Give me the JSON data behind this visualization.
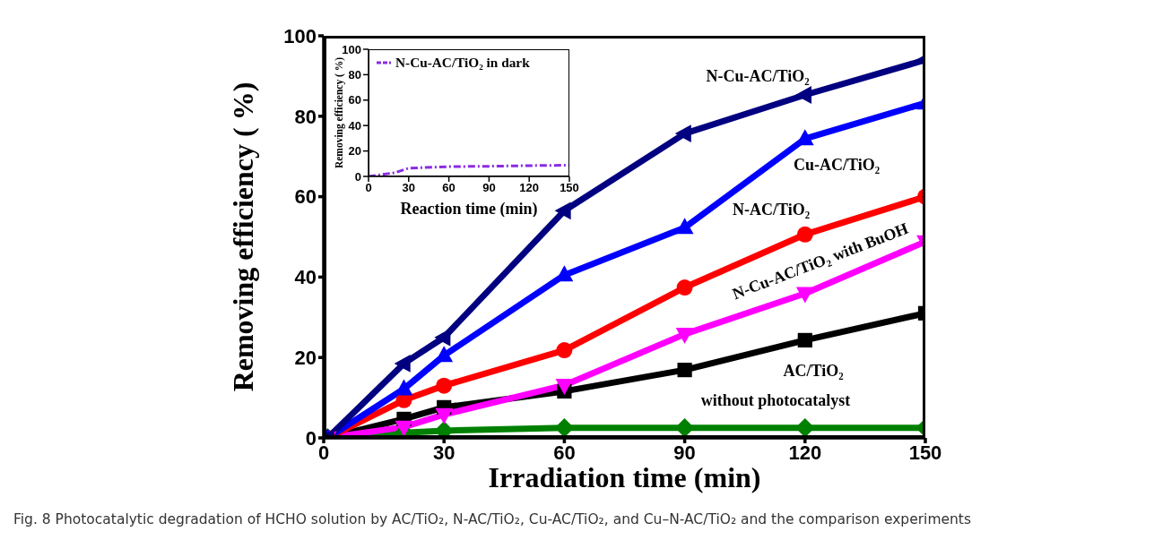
{
  "chart_data": [
    {
      "type": "line",
      "xlabel": "Irradiation time (min)",
      "ylabel": "Removing efficiency ( %)",
      "x": [
        1,
        20,
        30,
        60,
        90,
        120,
        150
      ],
      "xlim": [
        0,
        150
      ],
      "xticks": [
        0,
        30,
        60,
        90,
        120,
        150
      ],
      "ylim": [
        0,
        100
      ],
      "yticks": [
        0,
        20,
        40,
        60,
        80,
        100
      ],
      "grid": false,
      "legend": false,
      "line_style": "solid",
      "annotations": [
        "Fig. 8 Photocatalytic degradation of HCHO solution by AC/TiO₂, N-AC/TiO₂, Cu-AC/TiO₂, and Cu–N-AC/TiO₂ and the comparison experiments"
      ],
      "series": [
        {
          "name": "N-Cu-AC/TiO₂",
          "color": "#000080",
          "marker": "triangle",
          "values": [
            0,
            18.5,
            25,
            56.5,
            75.7,
            85.3,
            94
          ]
        },
        {
          "name": "Cu-AC/TiO₂",
          "color": "#0000ff",
          "marker": "triangle",
          "values": [
            0,
            12.2,
            20.5,
            40.5,
            52.3,
            74.4,
            83.3
          ]
        },
        {
          "name": "N-AC/TiO₂",
          "color": "#ff0000",
          "marker": "circle",
          "values": [
            0,
            9.4,
            13,
            21.8,
            37.4,
            50.6,
            60
          ]
        },
        {
          "name": "N-Cu-AC/TiO₂ with BuOH",
          "color": "#ff00ff",
          "marker": "triangle",
          "values": [
            0,
            2.7,
            5.8,
            13.1,
            25.8,
            35.9,
            48.8
          ]
        },
        {
          "name": "AC/TiO₂",
          "color": "#000000",
          "marker": "square",
          "values": [
            0,
            4.7,
            7.6,
            11.6,
            16.9,
            24.3,
            31
          ]
        },
        {
          "name": "without photocatalyst",
          "color": "#008000",
          "marker": "diamond",
          "values": [
            0,
            1.3,
            1.8,
            2.5,
            2.5,
            2.5,
            2.5
          ]
        }
      ]
    },
    {
      "type": "line",
      "xlabel": "Reaction time (min)",
      "ylabel": "Removing efficiency ( %)",
      "x": [
        0,
        20,
        30,
        60,
        90,
        120,
        150
      ],
      "xlim": [
        0,
        150
      ],
      "xticks": [
        0,
        30,
        60,
        90,
        120,
        150
      ],
      "ylim": [
        0,
        100
      ],
      "yticks": [
        0,
        20,
        40,
        60,
        80,
        100
      ],
      "grid": false,
      "legend": "top left",
      "line_style": "dashed",
      "marker": "none",
      "series": [
        {
          "name": "N-Cu-AC/TiO₂ in dark",
          "color": "#8a2be2",
          "values": [
            0,
            3,
            6.5,
            7.7,
            8,
            8.5,
            8.8
          ]
        }
      ]
    }
  ]
}
